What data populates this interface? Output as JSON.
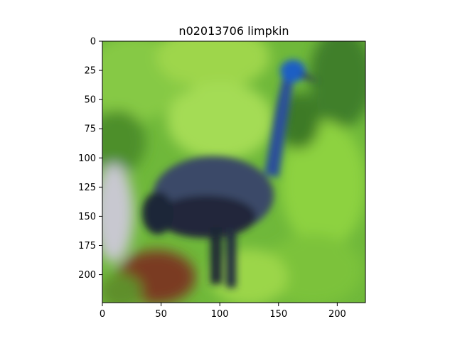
{
  "chart_data": {
    "type": "image",
    "title": "n02013706 limpkin",
    "xlabel": "",
    "ylabel": "",
    "xlim": [
      0,
      224
    ],
    "ylim": [
      224,
      0
    ],
    "x_ticks": [
      0,
      50,
      100,
      150,
      200
    ],
    "y_ticks": [
      0,
      25,
      50,
      75,
      100,
      125,
      150,
      175,
      200
    ],
    "grid": false,
    "legend": "none",
    "image_content": "limpkin"
  },
  "colors": {
    "background": "#ffffff",
    "axis": "#000000",
    "foliage_bright": "#8fd33c",
    "foliage_mid": "#4f9a2e",
    "foliage_dark": "#2f6d22",
    "bird_body": "#3a4a68",
    "bird_head": "#1f5fc4",
    "ground_red": "#7a3a22"
  }
}
